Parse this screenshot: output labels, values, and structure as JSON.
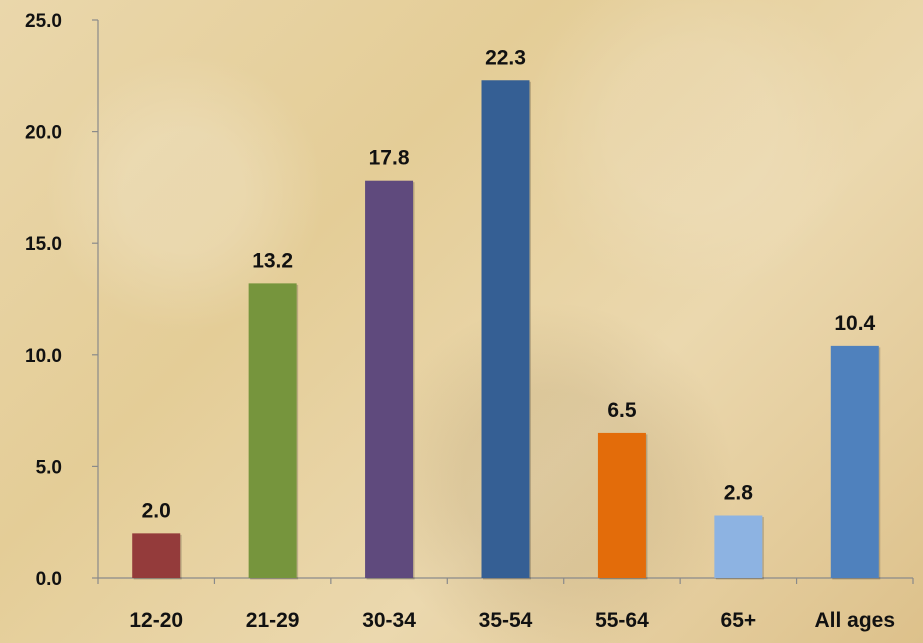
{
  "chart_data": {
    "type": "bar",
    "categories": [
      "12-20",
      "21-29",
      "30-34",
      "35-54",
      "55-64",
      "65+",
      "All ages"
    ],
    "values": [
      2.0,
      13.2,
      17.8,
      22.3,
      6.5,
      2.8,
      10.4
    ],
    "value_labels": [
      "2.0",
      "13.2",
      "17.8",
      "22.3",
      "6.5",
      "2.8",
      "10.4"
    ],
    "title": "",
    "xlabel": "",
    "ylabel": "",
    "ylim": [
      0,
      25
    ],
    "yticks": [
      "0.0",
      "5.0",
      "10.0",
      "15.0",
      "20.0",
      "25.0"
    ],
    "grid": false,
    "colors": [
      "#943b3b",
      "#76953d",
      "#5f4a7d",
      "#355f94",
      "#e36c0a",
      "#8db3e2",
      "#4f81bd"
    ]
  }
}
